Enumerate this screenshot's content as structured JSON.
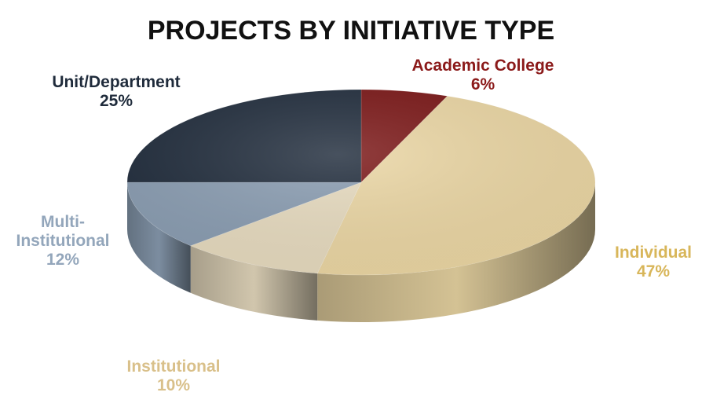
{
  "chart_data": {
    "type": "pie",
    "title": "PROJECTS BY INITIATIVE TYPE",
    "slices": [
      {
        "name": "Academic College",
        "value": 6,
        "label": "6%",
        "color": "#7a1515"
      },
      {
        "name": "Individual",
        "value": 47,
        "label": "47%",
        "color": "#ecd7a4"
      },
      {
        "name": "Institutional",
        "value": 10,
        "label": "10%",
        "color": "#e8dcc0"
      },
      {
        "name": "Multi-\nInstitutional",
        "value": 12,
        "label": "12%",
        "color": "#8a9db2"
      },
      {
        "name": "Unit/Department",
        "value": 25,
        "label": "25%",
        "color": "#1f2b3b"
      }
    ],
    "label_colors": {
      "Academic College": "#8b1a1a",
      "Individual": "#d8b65a",
      "Institutional": "#d9c08a",
      "Multi-\nInstitutional": "#93a6bb",
      "Unit/Department": "#1f2b3b"
    },
    "legend": "none",
    "style": "3d-pie"
  }
}
